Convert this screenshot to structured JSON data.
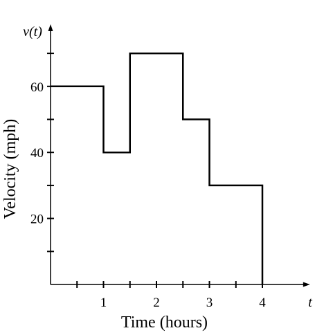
{
  "chart_data": {
    "type": "line",
    "step": true,
    "x_axis_label": "Time (hours)",
    "y_axis_label": "Velocity (mph)",
    "x_variable_label": "t",
    "y_variable_label": "v(t)",
    "xlim": [
      0,
      4.9
    ],
    "ylim": [
      0,
      78
    ],
    "x_ticks": [
      0.5,
      1,
      1.5,
      2,
      2.5,
      3,
      3.5,
      4
    ],
    "x_tick_labels": [
      {
        "value": 1,
        "label": "1"
      },
      {
        "value": 2,
        "label": "2"
      },
      {
        "value": 3,
        "label": "3"
      },
      {
        "value": 4,
        "label": "4"
      }
    ],
    "y_ticks": [
      10,
      20,
      30,
      40,
      50,
      60,
      70
    ],
    "y_tick_labels": [
      {
        "value": 20,
        "label": "20"
      },
      {
        "value": 40,
        "label": "40"
      },
      {
        "value": 60,
        "label": "60"
      }
    ],
    "grid": false,
    "segments": [
      {
        "x_start": 0,
        "x_end": 1,
        "v": 60
      },
      {
        "x_start": 1,
        "x_end": 1.5,
        "v": 40
      },
      {
        "x_start": 1.5,
        "x_end": 2.5,
        "v": 70
      },
      {
        "x_start": 2.5,
        "x_end": 3,
        "v": 50
      },
      {
        "x_start": 3,
        "x_end": 4,
        "v": 30
      },
      {
        "x_start": 4,
        "x_end": 4,
        "v": 0
      }
    ],
    "line_color": "#000000"
  }
}
